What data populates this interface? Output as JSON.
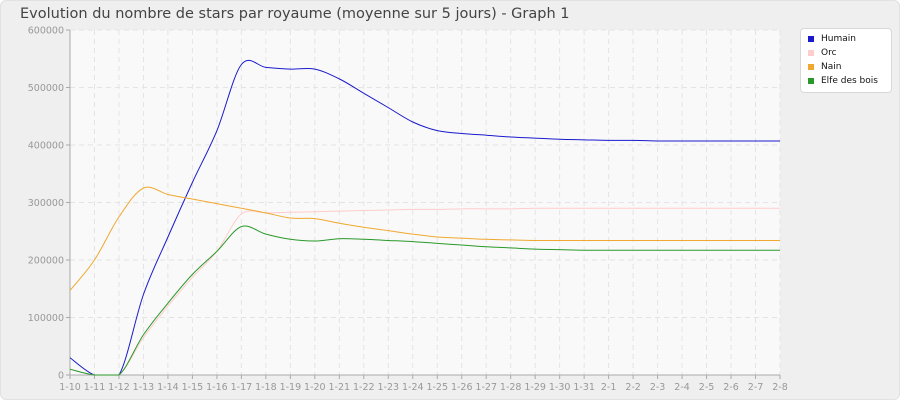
{
  "chart_data": {
    "type": "line",
    "title": "Evolution du nombre de stars par royaume (moyenne sur 5 jours) - Graph 1",
    "xlabel": "",
    "ylabel": "",
    "categories": [
      "1-10",
      "1-11",
      "1-12",
      "1-13",
      "1-14",
      "1-15",
      "1-16",
      "1-17",
      "1-18",
      "1-19",
      "1-20",
      "1-21",
      "1-22",
      "1-23",
      "1-24",
      "1-25",
      "1-26",
      "1-27",
      "1-28",
      "1-29",
      "1-30",
      "1-31",
      "2-1",
      "2-2",
      "2-3",
      "2-4",
      "2-5",
      "2-6",
      "2-7",
      "2-8"
    ],
    "ylim": [
      0,
      600000
    ],
    "yticks": [
      0,
      100000,
      200000,
      300000,
      400000,
      500000,
      600000
    ],
    "grid": true,
    "legend_position": "top-right",
    "series": [
      {
        "name": "Humain",
        "color": "#1a1acc",
        "values": [
          30000,
          0,
          0,
          140000,
          240000,
          335000,
          425000,
          540000,
          535000,
          532000,
          532000,
          515000,
          490000,
          465000,
          440000,
          425000,
          420000,
          417000,
          414000,
          412000,
          410000,
          409000,
          408000,
          408000,
          407000,
          407000,
          407000,
          407000,
          407000,
          407000
        ]
      },
      {
        "name": "Orc",
        "color": "#ffcccc",
        "values": [
          10000,
          0,
          0,
          65000,
          120000,
          170000,
          215000,
          280000,
          282000,
          283000,
          284000,
          285000,
          286000,
          287000,
          288000,
          288000,
          289000,
          289000,
          289000,
          290000,
          290000,
          290000,
          290000,
          290000,
          290000,
          290000,
          290000,
          290000,
          290000,
          290000
        ]
      },
      {
        "name": "Nain",
        "color": "#f0a830",
        "values": [
          147000,
          200000,
          275000,
          325000,
          314000,
          306000,
          298000,
          290000,
          282000,
          273000,
          272000,
          264000,
          257000,
          251000,
          245000,
          240000,
          238000,
          236000,
          235000,
          234000,
          234000,
          234000,
          234000,
          234000,
          234000,
          234000,
          234000,
          234000,
          234000,
          234000
        ]
      },
      {
        "name": "Elfe des bois",
        "color": "#2a992a",
        "values": [
          10000,
          0,
          0,
          70000,
          125000,
          175000,
          215000,
          258000,
          245000,
          236000,
          233000,
          237000,
          236000,
          234000,
          232000,
          229000,
          226000,
          223000,
          221000,
          219000,
          218000,
          217000,
          217000,
          217000,
          217000,
          217000,
          217000,
          217000,
          217000,
          217000
        ]
      }
    ]
  }
}
